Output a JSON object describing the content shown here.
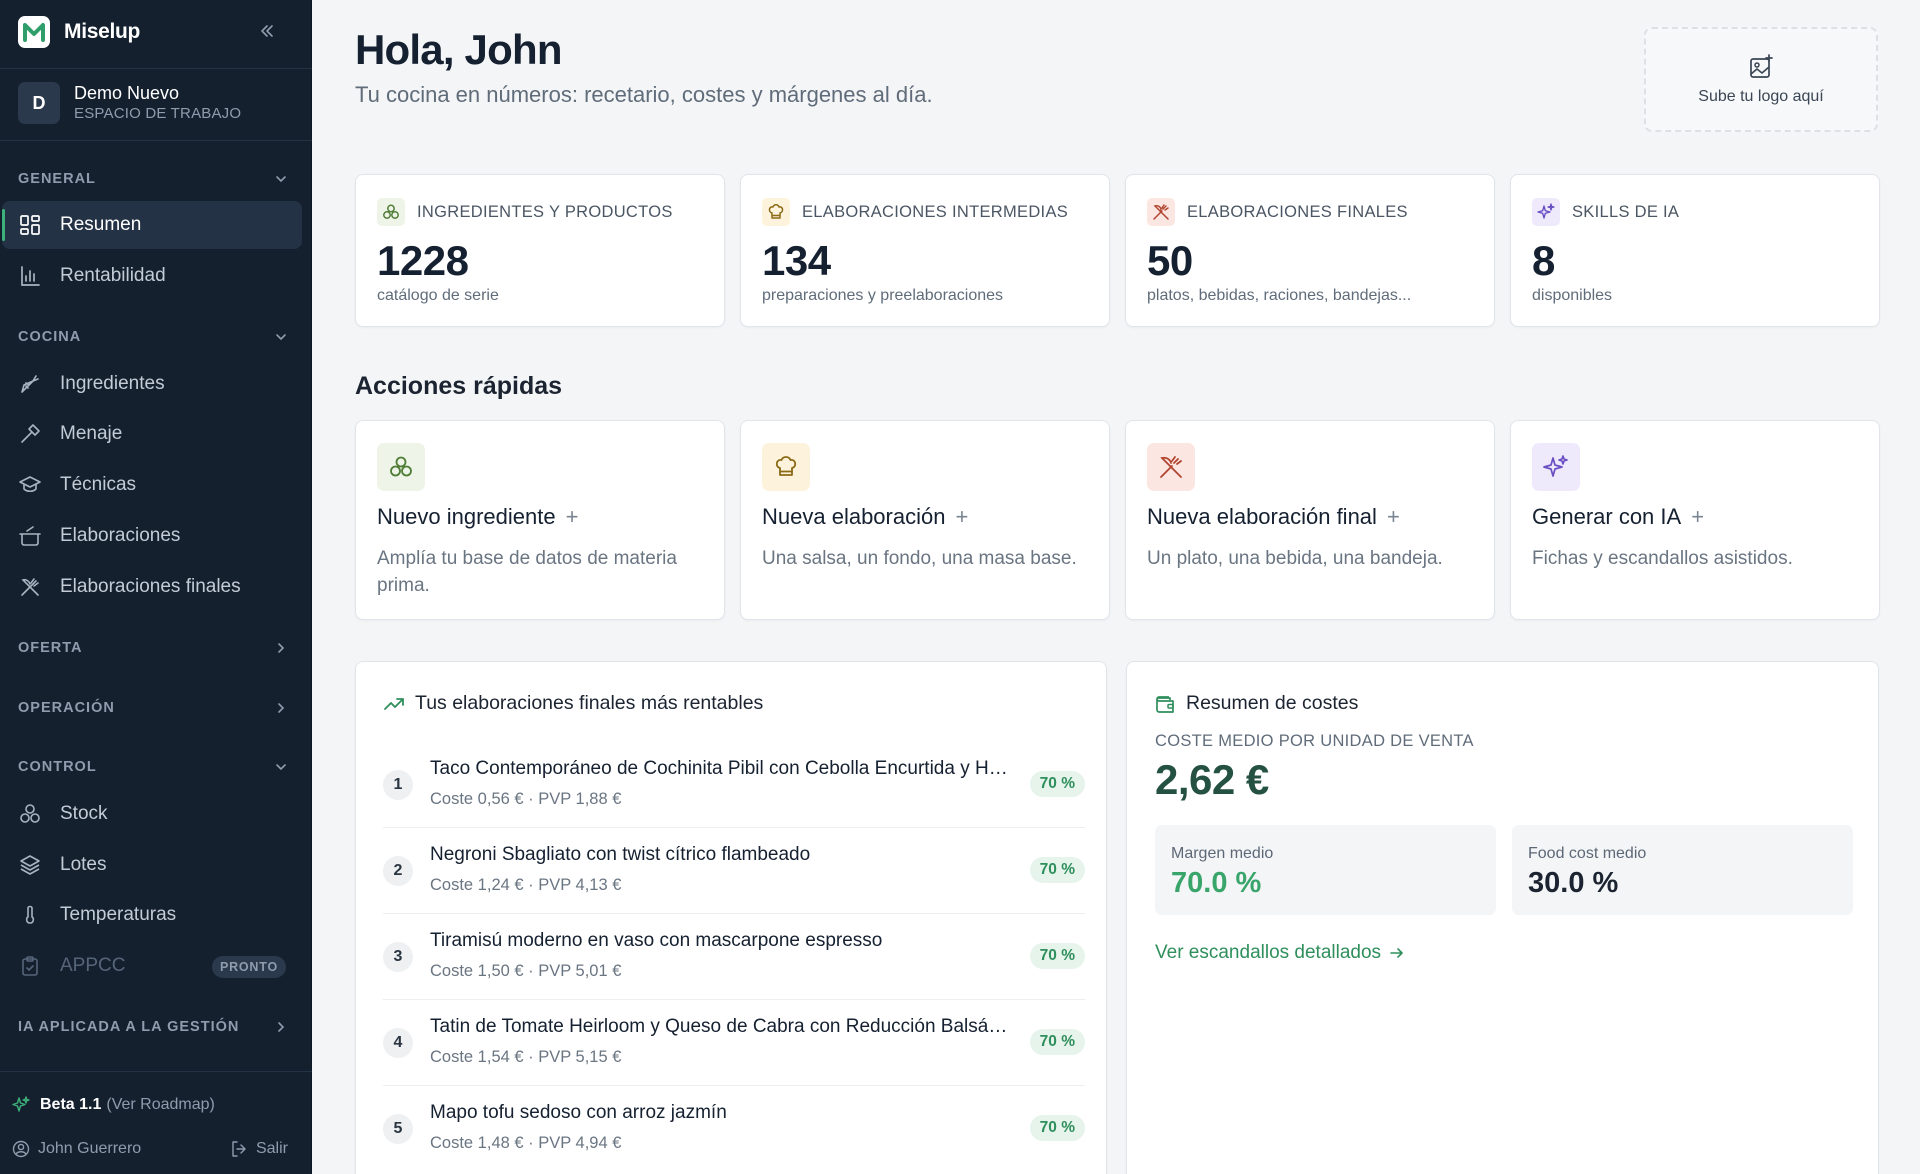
{
  "sidebar": {
    "brand": "Miselup",
    "workspace": {
      "initial": "D",
      "name": "Demo Nuevo",
      "sub": "ESPACIO DE TRABAJO"
    },
    "sections": {
      "general": "GENERAL",
      "cocina": "COCINA",
      "oferta": "OFERTA",
      "operacion": "OPERACIÓN",
      "control": "CONTROL",
      "ia": "IA APLICADA A LA GESTIÓN"
    },
    "items": {
      "resumen": "Resumen",
      "rentabilidad": "Rentabilidad",
      "ingredientes": "Ingredientes",
      "menaje": "Menaje",
      "tecnicas": "Técnicas",
      "elaboraciones": "Elaboraciones",
      "elaboraciones_finales": "Elaboraciones finales",
      "stock": "Stock",
      "lotes": "Lotes",
      "temperaturas": "Temperaturas",
      "appcc": "APPCC",
      "appcc_badge": "PRONTO"
    },
    "footer": {
      "beta": "Beta 1.1",
      "roadmap": "(Ver Roadmap)",
      "user": "John Guerrero",
      "logout": "Salir"
    }
  },
  "header": {
    "greeting": "Hola, John",
    "subtitle": "Tu cocina en números: recetario, costes y márgenes al día.",
    "logo_upload": "Sube tu logo aquí"
  },
  "stats": [
    {
      "label": "INGREDIENTES Y PRODUCTOS",
      "value": "1228",
      "sub": "catálogo de serie"
    },
    {
      "label": "ELABORACIONES INTERMEDIAS",
      "value": "134",
      "sub": "preparaciones y preelaboraciones"
    },
    {
      "label": "ELABORACIONES FINALES",
      "value": "50",
      "sub": "platos, bebidas, raciones, bandejas..."
    },
    {
      "label": "SKILLS DE IA",
      "value": "8",
      "sub": "disponibles"
    }
  ],
  "quick_actions": {
    "title": "Acciones rápidas",
    "items": [
      {
        "title": "Nuevo ingrediente",
        "plus": "+",
        "desc": "Amplía tu base de datos de materia prima."
      },
      {
        "title": "Nueva elaboración",
        "plus": "+",
        "desc": "Una salsa, un fondo, una masa base."
      },
      {
        "title": "Nueva elaboración final",
        "plus": "+",
        "desc": "Un plato, una bebida, una bandeja."
      },
      {
        "title": "Generar con IA",
        "plus": "+",
        "desc": "Fichas y escandallos asistidos."
      }
    ]
  },
  "ranking": {
    "title": "Tus elaboraciones finales más rentables",
    "rows": [
      {
        "n": "1",
        "name": "Taco Contemporáneo de Cochinita Pibil con Cebolla Encurtida y Habanero",
        "meta": "Coste 0,56 € · PVP 1,88 €",
        "pct": "70 %"
      },
      {
        "n": "2",
        "name": "Negroni Sbagliato con twist cítrico flambeado",
        "meta": "Coste 1,24 € · PVP 4,13 €",
        "pct": "70 %"
      },
      {
        "n": "3",
        "name": "Tiramisú moderno en vaso con mascarpone espresso",
        "meta": "Coste 1,50 € · PVP 5,01 €",
        "pct": "70 %"
      },
      {
        "n": "4",
        "name": "Tatin de Tomate Heirloom y Queso de Cabra con Reducción Balsámica",
        "meta": "Coste 1,54 € · PVP 5,15 €",
        "pct": "70 %"
      },
      {
        "n": "5",
        "name": "Mapo tofu sedoso con arroz jazmín",
        "meta": "Coste 1,48 € · PVP 4,94 €",
        "pct": "70 %"
      }
    ]
  },
  "costs": {
    "title": "Resumen de costes",
    "avg_label": "COSTE MEDIO POR UNIDAD DE VENTA",
    "avg_value": "2,62 €",
    "margin_label": "Margen medio",
    "margin_value": "70.0 %",
    "food_label": "Food cost medio",
    "food_value": "30.0 %",
    "link": "Ver escandallos detallados"
  },
  "colors": {
    "sidebar_bg": "#15202f",
    "accent_green": "#2f8f5c",
    "dark_green": "#245142"
  }
}
